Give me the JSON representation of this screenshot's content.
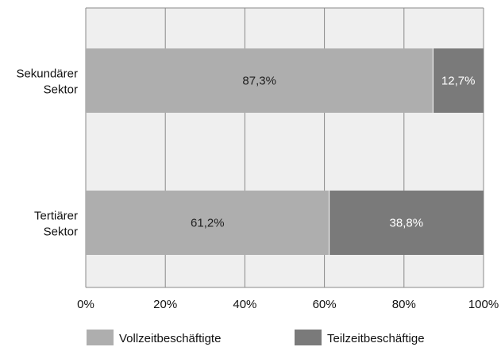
{
  "chart_data": {
    "type": "bar",
    "orientation": "horizontal",
    "stacked": true,
    "categories": [
      [
        "Sekundärer",
        "Sektor"
      ],
      [
        "Tertiärer",
        "Sektor"
      ]
    ],
    "series": [
      {
        "name": "Vollzeitbeschäftigte",
        "values": [
          87.3,
          61.2
        ],
        "labels": [
          "87,3%",
          "61,2%"
        ],
        "color": "#aeaeae",
        "label_color": "#222222"
      },
      {
        "name": "Teilzeitbeschäftige",
        "values": [
          12.7,
          38.8
        ],
        "labels": [
          "12,7%",
          "38,8%"
        ],
        "color": "#7a7a7a",
        "label_color": "#ffffff"
      }
    ],
    "xlim": [
      0,
      100
    ],
    "xticks": [
      0,
      20,
      40,
      60,
      80,
      100
    ],
    "xtick_labels": [
      "0%",
      "20%",
      "40%",
      "60%",
      "80%",
      "100%"
    ],
    "grid": true,
    "plot_background": "#efefef",
    "legend_position": "bottom"
  }
}
